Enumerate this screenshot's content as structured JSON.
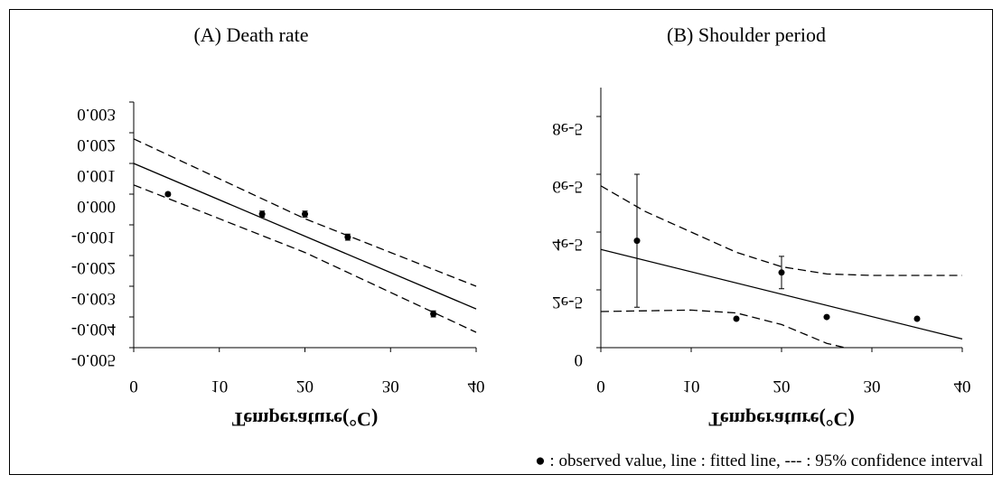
{
  "chart_data": [
    {
      "type": "scatter",
      "title": "(A) Death rate",
      "xlabel": "Temperature(°C)",
      "xlim": [
        0,
        40
      ],
      "xticks": [
        0,
        10,
        20,
        30,
        40
      ],
      "ylim": [
        -0.005,
        0.003
      ],
      "yticks": [
        0.003,
        0.002,
        0.001,
        {
          "value": 0,
          "label": "0.000"
        },
        -0.001,
        -0.002,
        -0.003,
        -0.004,
        -0.005
      ],
      "color": "#000000",
      "points": {
        "x": [
          4,
          15,
          20,
          25,
          35
        ],
        "values": [
          0.0,
          -0.00065,
          -0.00065,
          -0.0014,
          -0.0039
        ],
        "errors": [
          5e-05,
          0.0001,
          0.0001,
          0.0001,
          0.0001
        ]
      },
      "lines": [
        {
          "x": [
            0,
            40
          ],
          "values": [
            0.001,
            -0.00374
          ],
          "dashed": false
        },
        {
          "x": [
            0,
            10,
            20,
            30,
            40
          ],
          "values": [
            0.0018,
            0.0005,
            -0.0008,
            -0.0019,
            -0.003
          ],
          "dashed": true
        },
        {
          "x": [
            0,
            10,
            20,
            30,
            40
          ],
          "values": [
            0.0003,
            -0.0008,
            -0.0019,
            -0.0032,
            -0.0045
          ],
          "dashed": true
        }
      ]
    },
    {
      "type": "scatter",
      "title": "(B) Shoulder period",
      "xlabel": "Temperature(°C)",
      "xlim": [
        0,
        40
      ],
      "xticks": [
        0,
        10,
        20,
        30,
        40
      ],
      "ylim": [
        0,
        9e-05
      ],
      "yticks": [
        0,
        {
          "value": 2e-05,
          "label": "2e-5"
        },
        {
          "value": 4e-05,
          "label": "4e-5"
        },
        {
          "value": 6e-05,
          "label": "6e-5"
        },
        {
          "value": 8e-05,
          "label": "8e-5"
        }
      ],
      "color": "#000000",
      "points": {
        "x": [
          4,
          15,
          20,
          25,
          35
        ],
        "values": [
          3.7e-05,
          1e-05,
          2.6e-05,
          1.06e-05,
          1e-05
        ],
        "errors": [
          2.3e-05,
          0,
          5.6e-06,
          0,
          0
        ]
      },
      "lines": [
        {
          "x": [
            0,
            40
          ],
          "values": [
            3.4e-05,
            3e-06
          ],
          "dashed": false
        },
        {
          "x": [
            0,
            5,
            10,
            15,
            20,
            25,
            30,
            40
          ],
          "values": [
            5.6e-05,
            4.7e-05,
            4e-05,
            3.3e-05,
            2.8e-05,
            2.55e-05,
            2.5e-05,
            2.5e-05
          ],
          "dashed": true
        },
        {
          "x": [
            0,
            10,
            15,
            20,
            25,
            27
          ],
          "values": [
            1.25e-05,
            1.3e-05,
            1.2e-05,
            8e-06,
            1.5e-06,
            0
          ],
          "dashed": true
        }
      ]
    }
  ],
  "note": "● : observed value, line : fitted line, --- : 95% confidence interval"
}
